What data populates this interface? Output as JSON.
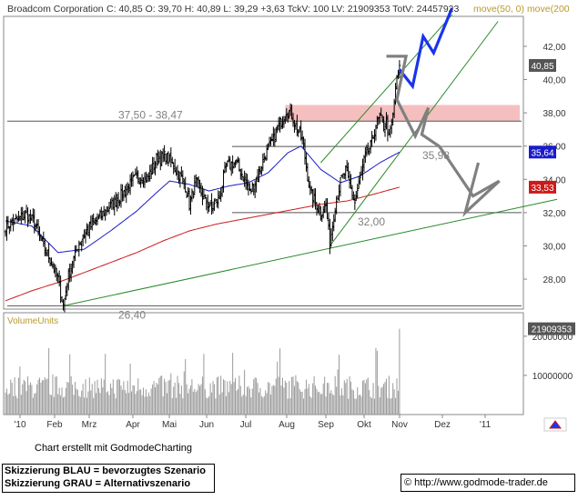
{
  "header": {
    "label": "Broadcom Corporation",
    "quote": "C: 40,85 O: 39,70 H: 40,89 L: 39,29 +3,63 TckV: 100 LV: 21909353 TotV: 24457923",
    "ma_label": "move(50, 0)  move(200"
  },
  "chart_data": [
    {
      "type": "candlestick",
      "title": "Broadcom Corporation",
      "x_tick_labels": [
        "'10",
        "Feb",
        "Mrz",
        "Apr",
        "Mai",
        "Jun",
        "Jul",
        "Aug",
        "Sep",
        "Okt",
        "Nov",
        "Dez",
        "'11"
      ],
      "y_tick_labels": [
        "42,00",
        "40,00",
        "38,00",
        "36,00",
        "34,00",
        "32,00",
        "30,00",
        "28,00"
      ],
      "ylim": [
        26.2,
        43.8
      ],
      "last_close": 40.85,
      "price_anchors": [
        [
          0,
          31.2
        ],
        [
          8,
          31.5
        ],
        [
          16,
          31.9
        ],
        [
          22,
          31.4
        ],
        [
          27,
          30.3
        ],
        [
          34,
          29.2
        ],
        [
          40,
          28.0
        ],
        [
          44,
          26.4
        ],
        [
          48,
          28.2
        ],
        [
          55,
          30.0
        ],
        [
          62,
          30.9
        ],
        [
          70,
          31.6
        ],
        [
          80,
          32.4
        ],
        [
          90,
          33.2
        ],
        [
          100,
          34.2
        ],
        [
          108,
          34.0
        ],
        [
          115,
          35.2
        ],
        [
          122,
          35.4
        ],
        [
          130,
          34.6
        ],
        [
          137,
          33.6
        ],
        [
          140,
          32.5
        ],
        [
          145,
          33.8
        ],
        [
          150,
          33.0
        ],
        [
          157,
          32.2
        ],
        [
          163,
          33.0
        ],
        [
          168,
          34.8
        ],
        [
          175,
          35.0
        ],
        [
          181,
          34.2
        ],
        [
          186,
          33.2
        ],
        [
          192,
          34.2
        ],
        [
          197,
          35.3
        ],
        [
          203,
          36.2
        ],
        [
          209,
          37.4
        ],
        [
          214,
          38.2
        ],
        [
          218,
          37.9
        ],
        [
          222,
          37.0
        ],
        [
          226,
          36.4
        ],
        [
          229,
          34.8
        ],
        [
          232,
          33.2
        ],
        [
          236,
          32.6
        ],
        [
          240,
          32.0
        ],
        [
          244,
          32.4
        ],
        [
          247,
          30.2
        ],
        [
          251,
          32.4
        ],
        [
          255,
          33.8
        ],
        [
          259,
          34.5
        ],
        [
          263,
          33.4
        ],
        [
          266,
          32.6
        ],
        [
          270,
          34.0
        ],
        [
          274,
          35.4
        ],
        [
          278,
          36.0
        ],
        [
          282,
          37.2
        ],
        [
          285,
          37.7
        ],
        [
          288,
          37.2
        ],
        [
          290,
          37.5
        ],
        [
          292,
          36.4
        ],
        [
          295,
          37.8
        ],
        [
          297,
          39.5
        ],
        [
          299,
          40.3
        ],
        [
          300,
          40.85
        ]
      ],
      "moving_averages": [
        {
          "label": "50",
          "color": "#1a1acc",
          "last_value": 35.64,
          "points": [
            [
              0,
              31.5
            ],
            [
              20,
              31.2
            ],
            [
              40,
              29.6
            ],
            [
              60,
              29.8
            ],
            [
              80,
              30.9
            ],
            [
              100,
              32.1
            ],
            [
              115,
              33.2
            ],
            [
              125,
              33.9
            ],
            [
              140,
              33.7
            ],
            [
              155,
              33.3
            ],
            [
              170,
              33.6
            ],
            [
              185,
              33.8
            ],
            [
              200,
              34.4
            ],
            [
              215,
              35.6
            ],
            [
              225,
              36.0
            ],
            [
              240,
              34.6
            ],
            [
              255,
              33.8
            ],
            [
              270,
              34.2
            ],
            [
              285,
              35.0
            ],
            [
              300,
              35.64
            ]
          ]
        },
        {
          "label": "200",
          "color": "#cc1a1a",
          "last_value": 33.53,
          "points": [
            [
              0,
              26.7
            ],
            [
              20,
              27.3
            ],
            [
              40,
              27.8
            ],
            [
              60,
              28.4
            ],
            [
              80,
              29.0
            ],
            [
              100,
              29.6
            ],
            [
              120,
              30.3
            ],
            [
              140,
              30.9
            ],
            [
              160,
              31.3
            ],
            [
              180,
              31.6
            ],
            [
              200,
              31.9
            ],
            [
              220,
              32.2
            ],
            [
              240,
              32.5
            ],
            [
              260,
              32.7
            ],
            [
              280,
              33.1
            ],
            [
              300,
              33.53
            ]
          ]
        }
      ],
      "horizontal_lines": [
        {
          "label": "37,50 - 38,47",
          "value": 37.5
        },
        {
          "label": "35,98",
          "value": 35.98
        },
        {
          "label": "32,00",
          "value": 32.0
        },
        {
          "label": "26,40",
          "value": 26.4
        }
      ],
      "resistance_zone": [
        37.5,
        38.47
      ],
      "trend_lines": [
        {
          "name": "support",
          "color": "#2a8a2a",
          "from": [
            44,
            26.4
          ],
          "to": [
            420,
            32.8
          ]
        },
        {
          "name": "channel-lower",
          "color": "#2a8a2a",
          "from": [
            247,
            30.0
          ],
          "to": [
            375,
            43.5
          ]
        },
        {
          "name": "channel-upper",
          "color": "#2a8a2a",
          "from": [
            240,
            35.0
          ],
          "to": [
            340,
            43.9
          ]
        }
      ],
      "scenarios": [
        {
          "name": "bevorzugtes Szenario",
          "color": "#1a33ee",
          "points": [
            [
              300,
              40.6
            ],
            [
              310,
              39.6
            ],
            [
              318,
              42.6
            ],
            [
              326,
              41.6
            ],
            [
              340,
              44.3
            ]
          ]
        },
        {
          "name": "Alternativszenario",
          "color": "#808080",
          "points": [
            [
              290,
              41.4
            ],
            [
              305,
              41.4
            ],
            [
              298,
              38.8
            ],
            [
              312,
              36.6
            ],
            [
              322,
              38.3
            ],
            [
              317,
              36.7
            ],
            [
              330,
              36.0
            ],
            [
              332,
              35.8
            ],
            [
              356,
              33.0
            ],
            [
              376,
              33.9
            ],
            [
              350,
              32.0
            ],
            [
              360,
              35.0
            ]
          ]
        }
      ],
      "value_tags": [
        {
          "text": "40,85",
          "value": 40.85,
          "bg": "#555555",
          "fg": "#ffffff"
        },
        {
          "text": "35,64",
          "value": 35.64,
          "bg": "#1a1acc",
          "fg": "#ffffff"
        },
        {
          "text": "33,53",
          "value": 33.53,
          "bg": "#cc1a1a",
          "fg": "#ffffff"
        }
      ]
    },
    {
      "type": "bar",
      "title": "VolumeUnits",
      "y_tick_labels": [
        "20000000",
        "10000000"
      ],
      "y_tick_values": [
        20000000,
        10000000
      ],
      "ylim": [
        0,
        26000000
      ],
      "last_volume_tag": "21909353",
      "last_volume": 21909353,
      "volume_seed": 7
    }
  ],
  "footer": {
    "credit": "Chart erstellt mit GodmodeCharting",
    "legend_blue": "Skizzierung BLAU = bevorzugtes Szenario",
    "legend_grey": "Skizzierung GRAU = Alternativszenario",
    "copyright_symbol": "©",
    "url": "http://www.godmode-trader.de"
  }
}
